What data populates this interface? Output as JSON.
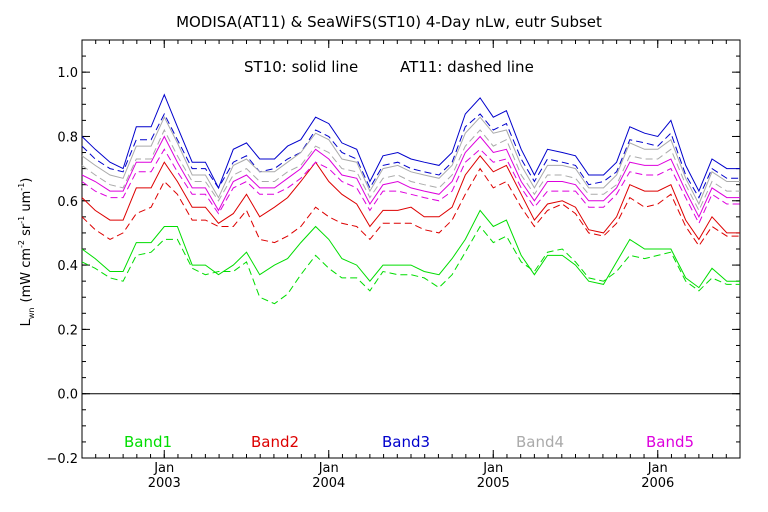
{
  "chart_data": {
    "type": "line",
    "title": "MODISA(AT11) & SeaWiFS(ST10) 4-Day nLw, eutr Subset",
    "annotation_left": "ST10: solid line",
    "annotation_right": "AT11: dashed line",
    "ylabel": "L",
    "ylabel_sub": "wn",
    "ylabel_units_pre": "(mW cm",
    "ylabel_units_exp1": "-2",
    "ylabel_units_mid": " sr",
    "ylabel_units_exp2": "-1",
    "ylabel_units_mid2": " um",
    "ylabel_units_exp3": "-1",
    "ylabel_units_post": ")",
    "ylim": [
      -0.2,
      1.1
    ],
    "y_ticks": [
      -0.2,
      0.0,
      0.2,
      0.4,
      0.6,
      0.8,
      1.0
    ],
    "y_tick_labels": [
      "−0.2",
      "0.0",
      "0.2",
      "0.4",
      "0.6",
      "0.8",
      "1.0"
    ],
    "xlim": [
      2002.5,
      2006.5
    ],
    "x_ticks": [
      2003,
      2004,
      2005,
      2006
    ],
    "x_tick_month_labels": [
      "Jan",
      "Jan",
      "Jan",
      "Jan"
    ],
    "x_tick_year_labels": [
      "2003",
      "2004",
      "2005",
      "2006"
    ],
    "zero_line": 0.0,
    "grid": false,
    "legend_placement": "bottom",
    "x": [
      2002.5,
      2002.58,
      2002.67,
      2002.75,
      2002.83,
      2002.92,
      2003.0,
      2003.08,
      2003.17,
      2003.25,
      2003.33,
      2003.42,
      2003.5,
      2003.58,
      2003.67,
      2003.75,
      2003.83,
      2003.92,
      2004.0,
      2004.08,
      2004.17,
      2004.25,
      2004.33,
      2004.42,
      2004.5,
      2004.58,
      2004.67,
      2004.75,
      2004.83,
      2004.92,
      2005.0,
      2005.08,
      2005.17,
      2005.25,
      2005.33,
      2005.42,
      2005.5,
      2005.58,
      2005.67,
      2005.75,
      2005.83,
      2005.92,
      2006.0,
      2006.08,
      2006.17,
      2006.25,
      2006.33,
      2006.42,
      2006.5
    ],
    "series": [
      {
        "name": "Band1",
        "sensor": "ST10",
        "style": "solid",
        "color": "#00dd00",
        "values": [
          0.45,
          0.42,
          0.38,
          0.38,
          0.47,
          0.47,
          0.52,
          0.52,
          0.4,
          0.4,
          0.37,
          0.4,
          0.44,
          0.37,
          0.4,
          0.42,
          0.47,
          0.52,
          0.48,
          0.42,
          0.4,
          0.35,
          0.4,
          0.4,
          0.4,
          0.38,
          0.37,
          0.42,
          0.48,
          0.57,
          0.52,
          0.54,
          0.43,
          0.37,
          0.43,
          0.43,
          0.4,
          0.35,
          0.34,
          0.41,
          0.48,
          0.45,
          0.45,
          0.45,
          0.36,
          0.33,
          0.39,
          0.35,
          0.35
        ]
      },
      {
        "name": "Band1",
        "sensor": "AT11",
        "style": "dashed",
        "color": "#00dd00",
        "values": [
          0.41,
          0.39,
          0.36,
          0.35,
          0.43,
          0.44,
          0.48,
          0.48,
          0.39,
          0.37,
          0.38,
          0.38,
          0.41,
          0.3,
          0.28,
          0.31,
          0.37,
          0.43,
          0.39,
          0.36,
          0.36,
          0.32,
          0.38,
          0.37,
          0.37,
          0.36,
          0.33,
          0.37,
          0.44,
          0.52,
          0.47,
          0.49,
          0.41,
          0.38,
          0.44,
          0.45,
          0.41,
          0.36,
          0.35,
          0.38,
          0.43,
          0.42,
          0.43,
          0.44,
          0.35,
          0.32,
          0.36,
          0.34,
          0.34
        ]
      },
      {
        "name": "Band2",
        "sensor": "ST10",
        "style": "solid",
        "color": "#dd0000",
        "values": [
          0.61,
          0.57,
          0.54,
          0.54,
          0.64,
          0.64,
          0.72,
          0.66,
          0.58,
          0.58,
          0.53,
          0.56,
          0.62,
          0.55,
          0.58,
          0.61,
          0.66,
          0.72,
          0.66,
          0.62,
          0.59,
          0.52,
          0.57,
          0.57,
          0.58,
          0.55,
          0.55,
          0.58,
          0.68,
          0.74,
          0.69,
          0.71,
          0.62,
          0.54,
          0.59,
          0.6,
          0.58,
          0.51,
          0.5,
          0.55,
          0.65,
          0.63,
          0.63,
          0.65,
          0.54,
          0.48,
          0.55,
          0.5,
          0.5
        ]
      },
      {
        "name": "Band2",
        "sensor": "AT11",
        "style": "dashed",
        "color": "#dd0000",
        "values": [
          0.55,
          0.51,
          0.48,
          0.5,
          0.56,
          0.58,
          0.66,
          0.62,
          0.54,
          0.54,
          0.52,
          0.52,
          0.57,
          0.48,
          0.47,
          0.49,
          0.52,
          0.58,
          0.55,
          0.53,
          0.52,
          0.48,
          0.53,
          0.53,
          0.53,
          0.51,
          0.5,
          0.54,
          0.62,
          0.7,
          0.64,
          0.66,
          0.58,
          0.52,
          0.57,
          0.59,
          0.56,
          0.5,
          0.49,
          0.53,
          0.61,
          0.58,
          0.59,
          0.62,
          0.52,
          0.46,
          0.52,
          0.49,
          0.49
        ]
      },
      {
        "name": "Band3",
        "sensor": "ST10",
        "style": "solid",
        "color": "#0000cc",
        "values": [
          0.8,
          0.76,
          0.72,
          0.7,
          0.83,
          0.83,
          0.93,
          0.83,
          0.72,
          0.72,
          0.64,
          0.76,
          0.78,
          0.73,
          0.73,
          0.77,
          0.79,
          0.86,
          0.84,
          0.78,
          0.76,
          0.66,
          0.74,
          0.75,
          0.73,
          0.72,
          0.71,
          0.75,
          0.87,
          0.92,
          0.86,
          0.88,
          0.76,
          0.68,
          0.76,
          0.75,
          0.74,
          0.68,
          0.68,
          0.72,
          0.83,
          0.81,
          0.8,
          0.85,
          0.71,
          0.63,
          0.73,
          0.7,
          0.7
        ]
      },
      {
        "name": "Band3",
        "sensor": "AT11",
        "style": "dashed",
        "color": "#0000cc",
        "values": [
          0.77,
          0.73,
          0.7,
          0.69,
          0.79,
          0.79,
          0.87,
          0.79,
          0.7,
          0.7,
          0.64,
          0.72,
          0.74,
          0.69,
          0.7,
          0.73,
          0.75,
          0.82,
          0.8,
          0.75,
          0.73,
          0.64,
          0.71,
          0.72,
          0.7,
          0.69,
          0.68,
          0.72,
          0.83,
          0.87,
          0.82,
          0.84,
          0.73,
          0.66,
          0.73,
          0.72,
          0.71,
          0.65,
          0.66,
          0.69,
          0.79,
          0.78,
          0.77,
          0.81,
          0.68,
          0.61,
          0.7,
          0.67,
          0.67
        ]
      },
      {
        "name": "Band4",
        "sensor": "ST10",
        "style": "solid",
        "color": "#aaaaaa",
        "values": [
          0.74,
          0.71,
          0.68,
          0.67,
          0.77,
          0.77,
          0.86,
          0.78,
          0.68,
          0.68,
          0.61,
          0.71,
          0.73,
          0.69,
          0.69,
          0.72,
          0.75,
          0.81,
          0.79,
          0.73,
          0.72,
          0.63,
          0.7,
          0.71,
          0.69,
          0.68,
          0.67,
          0.71,
          0.81,
          0.86,
          0.81,
          0.82,
          0.71,
          0.64,
          0.71,
          0.71,
          0.7,
          0.64,
          0.64,
          0.68,
          0.78,
          0.76,
          0.76,
          0.79,
          0.67,
          0.59,
          0.69,
          0.66,
          0.66
        ]
      },
      {
        "name": "Band4",
        "sensor": "AT11",
        "style": "dashed",
        "color": "#aaaaaa",
        "values": [
          0.71,
          0.68,
          0.65,
          0.64,
          0.73,
          0.73,
          0.82,
          0.74,
          0.66,
          0.66,
          0.6,
          0.68,
          0.7,
          0.66,
          0.66,
          0.69,
          0.71,
          0.77,
          0.75,
          0.7,
          0.69,
          0.61,
          0.67,
          0.68,
          0.66,
          0.65,
          0.64,
          0.68,
          0.77,
          0.82,
          0.77,
          0.79,
          0.68,
          0.62,
          0.68,
          0.68,
          0.67,
          0.62,
          0.62,
          0.65,
          0.74,
          0.73,
          0.73,
          0.76,
          0.65,
          0.57,
          0.66,
          0.63,
          0.63
        ]
      },
      {
        "name": "Band5",
        "sensor": "ST10",
        "style": "solid",
        "color": "#dd00dd",
        "values": [
          0.68,
          0.66,
          0.63,
          0.63,
          0.72,
          0.72,
          0.8,
          0.72,
          0.64,
          0.64,
          0.57,
          0.66,
          0.68,
          0.64,
          0.64,
          0.67,
          0.7,
          0.76,
          0.73,
          0.68,
          0.67,
          0.59,
          0.65,
          0.66,
          0.64,
          0.63,
          0.62,
          0.66,
          0.75,
          0.8,
          0.75,
          0.76,
          0.66,
          0.6,
          0.66,
          0.66,
          0.65,
          0.6,
          0.6,
          0.64,
          0.72,
          0.71,
          0.71,
          0.73,
          0.63,
          0.55,
          0.64,
          0.61,
          0.61
        ]
      },
      {
        "name": "Band5",
        "sensor": "AT11",
        "style": "dashed",
        "color": "#dd00dd",
        "values": [
          0.66,
          0.63,
          0.61,
          0.61,
          0.69,
          0.69,
          0.76,
          0.69,
          0.62,
          0.62,
          0.56,
          0.64,
          0.66,
          0.62,
          0.62,
          0.64,
          0.67,
          0.72,
          0.7,
          0.66,
          0.64,
          0.57,
          0.63,
          0.63,
          0.62,
          0.61,
          0.6,
          0.63,
          0.72,
          0.76,
          0.72,
          0.73,
          0.64,
          0.58,
          0.63,
          0.63,
          0.63,
          0.58,
          0.58,
          0.62,
          0.69,
          0.68,
          0.68,
          0.7,
          0.61,
          0.53,
          0.62,
          0.59,
          0.59
        ]
      }
    ],
    "legend": [
      {
        "label": "Band1",
        "color": "#00dd00"
      },
      {
        "label": "Band2",
        "color": "#dd0000"
      },
      {
        "label": "Band3",
        "color": "#0000cc"
      },
      {
        "label": "Band4",
        "color": "#aaaaaa"
      },
      {
        "label": "Band5",
        "color": "#dd00dd"
      }
    ]
  }
}
